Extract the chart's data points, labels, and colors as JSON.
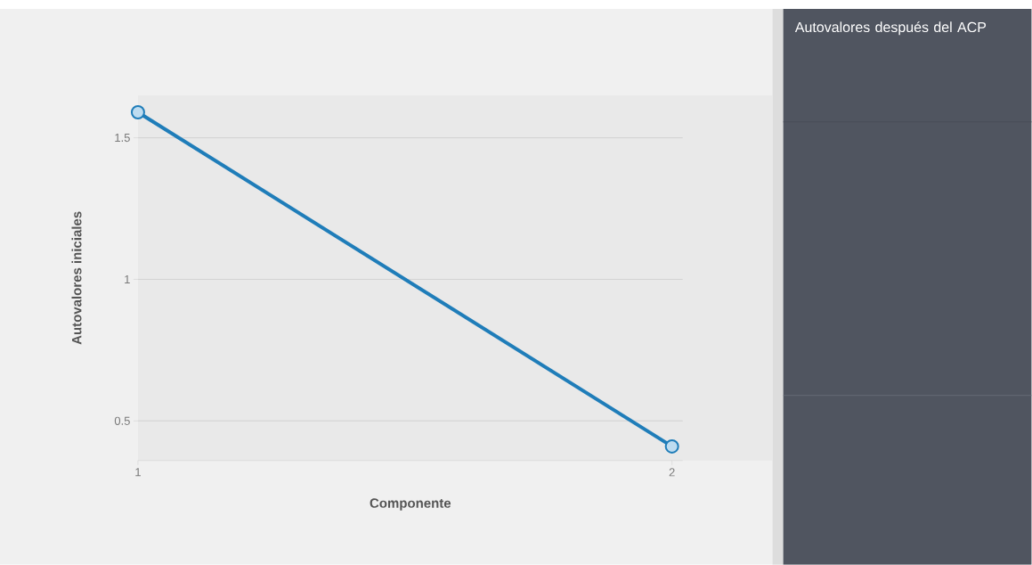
{
  "chart_data": {
    "type": "line",
    "title": "Autovalores después del ACP",
    "xlabel": "Componente",
    "ylabel": "Autovalores iniciales",
    "x": [
      1,
      2
    ],
    "series": [
      {
        "color": "#1f7db9",
        "values": [
          1.59,
          0.41
        ]
      }
    ],
    "xlim": [
      1,
      2.02
    ],
    "ylim": [
      0.36,
      1.65
    ],
    "xticks": [
      1,
      2
    ],
    "yticks": [
      0.5,
      1,
      1.5
    ],
    "grid": "y",
    "marker": "circle",
    "line_style": "solid"
  }
}
